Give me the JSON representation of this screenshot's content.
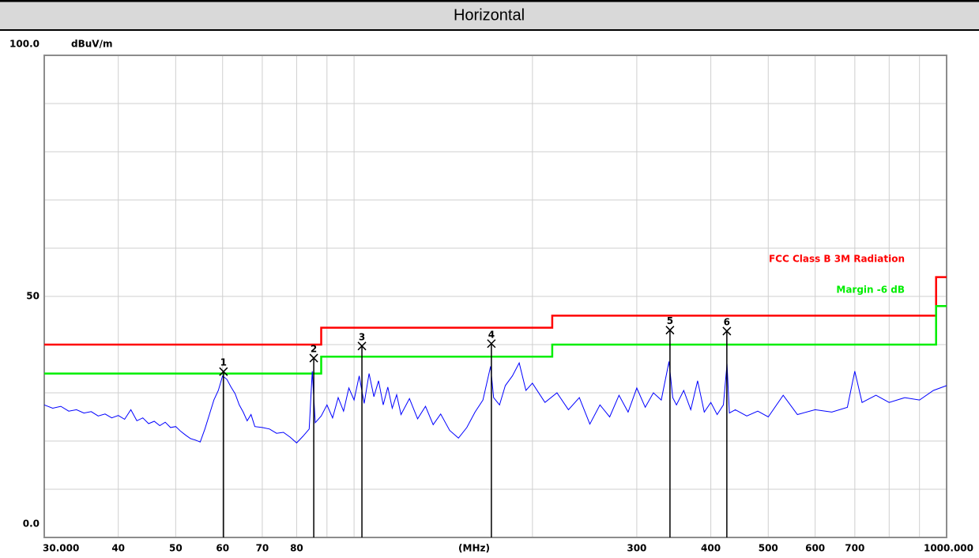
{
  "chart_data": {
    "type": "line",
    "title": "Horizontal",
    "y_unit": "dBuV/m",
    "x_unit": "(MHz)",
    "log_x": true,
    "xlim": [
      30,
      1000
    ],
    "ylim": [
      0,
      100
    ],
    "xticks": [
      {
        "value": 30,
        "label": "30.000"
      },
      40,
      50,
      60,
      70,
      80,
      300,
      400,
      500,
      600,
      700,
      {
        "value": 1000,
        "label": "1000.000"
      }
    ],
    "xgrid": [
      90,
      100,
      200,
      800,
      900
    ],
    "yticks": [
      {
        "value": 0,
        "label": "0.0"
      },
      50,
      {
        "value": 100,
        "label": "100.0"
      }
    ],
    "ygrid": [
      10,
      20,
      30,
      40,
      60,
      70,
      80,
      90
    ],
    "series": [
      {
        "color": "#0000ff",
        "x": [
          30,
          31,
          32,
          33,
          34,
          35,
          36,
          37,
          38,
          39,
          40,
          41,
          42,
          43,
          44,
          45,
          46,
          47,
          48,
          49,
          50,
          51,
          52,
          53,
          54,
          55,
          56,
          57,
          58,
          59,
          60,
          61,
          62,
          63,
          64,
          65,
          66,
          67,
          68,
          70,
          72,
          74,
          76,
          78,
          80,
          82,
          84,
          85,
          86,
          88,
          90,
          92,
          94,
          96,
          98,
          100,
          102,
          104,
          106,
          108,
          110,
          112,
          114,
          116,
          118,
          120,
          124,
          128,
          132,
          136,
          140,
          145,
          150,
          155,
          160,
          165,
          170,
          172,
          176,
          180,
          185,
          190,
          195,
          200,
          210,
          220,
          230,
          240,
          250,
          260,
          270,
          280,
          290,
          300,
          310,
          320,
          330,
          340,
          345,
          350,
          360,
          370,
          380,
          390,
          400,
          410,
          420,
          426,
          430,
          440,
          460,
          480,
          500,
          530,
          560,
          600,
          640,
          680,
          700,
          720,
          760,
          800,
          850,
          900,
          950,
          1000
        ],
        "values": [
          27.5,
          26.8,
          27.2,
          26.2,
          26.5,
          25.8,
          26.1,
          25.2,
          25.6,
          24.8,
          25.3,
          24.5,
          26.5,
          24.2,
          24.8,
          23.6,
          24.1,
          23.2,
          23.9,
          22.8,
          23.0,
          22.0,
          21.2,
          20.5,
          20.2,
          19.8,
          22.5,
          25.5,
          28.5,
          30.5,
          33.5,
          32.8,
          31.2,
          29.8,
          27.5,
          26.0,
          24.2,
          25.5,
          23.0,
          22.8,
          22.5,
          21.6,
          21.8,
          20.8,
          19.6,
          21.0,
          22.5,
          34.5,
          23.8,
          25.2,
          27.5,
          24.8,
          29.0,
          26.2,
          31.0,
          28.5,
          33.5,
          27.8,
          34.0,
          29.2,
          32.5,
          27.5,
          31.2,
          26.8,
          29.6,
          25.5,
          28.8,
          24.6,
          27.2,
          23.4,
          25.6,
          22.2,
          20.6,
          22.8,
          26.0,
          28.5,
          35.5,
          29.0,
          27.5,
          31.5,
          33.5,
          36.2,
          30.5,
          32.0,
          28.0,
          30.0,
          26.5,
          29.0,
          23.5,
          27.5,
          25.0,
          29.5,
          26.0,
          31.0,
          27.0,
          30.0,
          28.5,
          36.5,
          29.0,
          27.5,
          30.5,
          26.5,
          32.5,
          26.0,
          28.0,
          25.5,
          27.5,
          36.0,
          25.8,
          26.5,
          25.2,
          26.2,
          25.0,
          29.5,
          25.5,
          26.5,
          26.0,
          27.0,
          34.5,
          28.0,
          29.5,
          28.0,
          29.0,
          28.5,
          30.5,
          31.5
        ]
      },
      {
        "name": "FCC Class B 3M Radiation",
        "color": "#ff0000",
        "x": [
          30,
          88,
          88,
          216,
          216,
          960,
          960,
          1000
        ],
        "values": [
          40,
          40,
          43.5,
          43.5,
          46,
          46,
          54,
          54
        ]
      },
      {
        "name": "Margin -6 dB",
        "color": "#00ee00",
        "x": [
          30,
          88,
          88,
          216,
          216,
          960,
          960,
          1000
        ],
        "values": [
          34,
          34,
          37.5,
          37.5,
          40,
          40,
          48,
          48
        ]
      }
    ],
    "markers": [
      {
        "label": "1",
        "freq": 60.2,
        "level": 34.4
      },
      {
        "label": "2",
        "freq": 85.5,
        "level": 37.2
      },
      {
        "label": "3",
        "freq": 103.1,
        "level": 39.7
      },
      {
        "label": "4",
        "freq": 170.5,
        "level": 40.2
      },
      {
        "label": "5",
        "freq": 341.3,
        "level": 43.0
      },
      {
        "label": "6",
        "freq": 425.7,
        "level": 42.8
      }
    ]
  }
}
